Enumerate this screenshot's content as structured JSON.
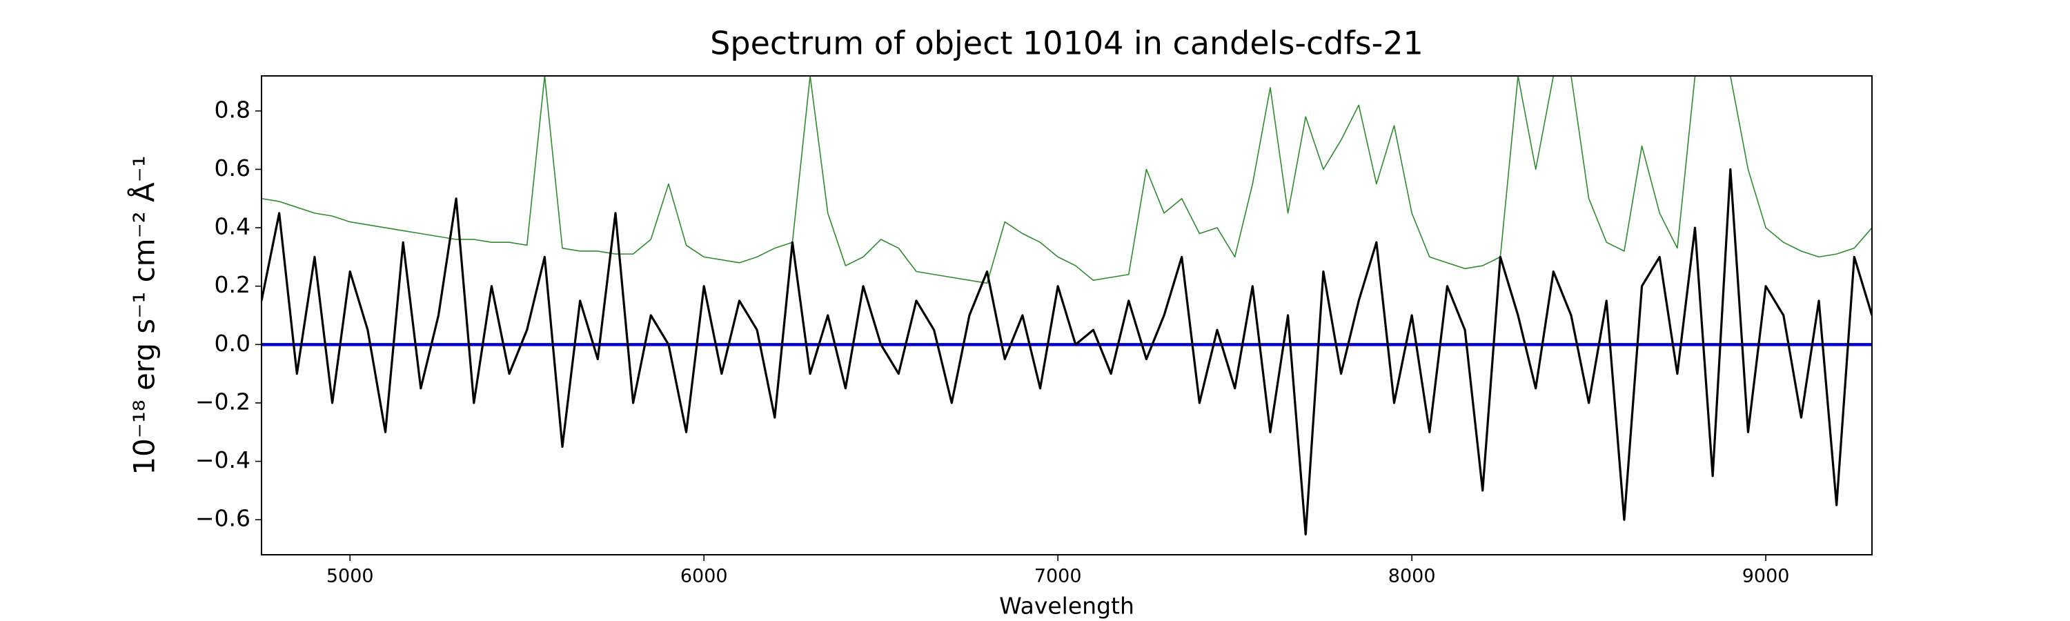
{
  "chart_data": {
    "type": "line",
    "title": "Spectrum of object 10104 in candels-cdfs-21",
    "xlabel": "Wavelength",
    "ylabel": "10⁻¹⁸ erg s⁻¹ cm⁻² Å⁻¹",
    "x": [
      4750,
      4800,
      4850,
      4900,
      4950,
      5000,
      5050,
      5100,
      5150,
      5200,
      5250,
      5300,
      5350,
      5400,
      5450,
      5500,
      5550,
      5600,
      5650,
      5700,
      5750,
      5800,
      5850,
      5900,
      5950,
      6000,
      6050,
      6100,
      6150,
      6200,
      6250,
      6300,
      6350,
      6400,
      6450,
      6500,
      6550,
      6600,
      6650,
      6700,
      6750,
      6800,
      6850,
      6900,
      6950,
      7000,
      7050,
      7100,
      7150,
      7200,
      7250,
      7300,
      7350,
      7400,
      7450,
      7500,
      7550,
      7600,
      7650,
      7700,
      7750,
      7800,
      7850,
      7900,
      7950,
      8000,
      8050,
      8100,
      8150,
      8200,
      8250,
      8300,
      8350,
      8400,
      8450,
      8500,
      8550,
      8600,
      8650,
      8700,
      8750,
      8800,
      8850,
      8900,
      8950,
      9000,
      9050,
      9100,
      9150,
      9200,
      9250,
      9300
    ],
    "series": [
      {
        "color": "#2e8b2e",
        "width": 1.6,
        "values": [
          0.5,
          0.49,
          0.47,
          0.45,
          0.44,
          0.42,
          0.41,
          0.4,
          0.39,
          0.38,
          0.37,
          0.36,
          0.36,
          0.35,
          0.35,
          0.34,
          0.92,
          0.33,
          0.32,
          0.32,
          0.31,
          0.31,
          0.36,
          0.55,
          0.34,
          0.3,
          0.29,
          0.28,
          0.3,
          0.33,
          0.35,
          0.92,
          0.45,
          0.27,
          0.3,
          0.36,
          0.33,
          0.25,
          0.24,
          0.23,
          0.22,
          0.21,
          0.42,
          0.38,
          0.35,
          0.3,
          0.27,
          0.22,
          0.23,
          0.24,
          0.6,
          0.45,
          0.5,
          0.38,
          0.4,
          0.3,
          0.55,
          0.88,
          0.45,
          0.78,
          0.6,
          0.7,
          0.82,
          0.55,
          0.75,
          0.45,
          0.3,
          0.28,
          0.26,
          0.27,
          0.3,
          0.92,
          0.6,
          0.92,
          0.92,
          0.5,
          0.35,
          0.32,
          0.68,
          0.45,
          0.33,
          0.92,
          0.92,
          0.92,
          0.6,
          0.4,
          0.35,
          0.32,
          0.3,
          0.31,
          0.33,
          0.4
        ]
      },
      {
        "color": "#0000cc",
        "width": 4.5,
        "values": [
          0,
          0,
          0,
          0,
          0,
          0,
          0,
          0,
          0,
          0,
          0,
          0,
          0,
          0,
          0,
          0,
          0,
          0,
          0,
          0,
          0,
          0,
          0,
          0,
          0,
          0,
          0,
          0,
          0,
          0,
          0,
          0,
          0,
          0,
          0,
          0,
          0,
          0,
          0,
          0,
          0,
          0,
          0,
          0,
          0,
          0,
          0,
          0,
          0,
          0,
          0,
          0,
          0,
          0,
          0,
          0,
          0,
          0,
          0,
          0,
          0,
          0,
          0,
          0,
          0,
          0,
          0,
          0,
          0,
          0,
          0,
          0,
          0,
          0,
          0,
          0,
          0,
          0,
          0,
          0,
          0,
          0,
          0,
          0,
          0,
          0,
          0,
          0,
          0,
          0,
          0,
          0
        ]
      },
      {
        "color": "#000000",
        "width": 3.2,
        "values": [
          0.15,
          0.45,
          -0.1,
          0.3,
          -0.2,
          0.25,
          0.05,
          -0.3,
          0.35,
          -0.15,
          0.1,
          0.5,
          -0.2,
          0.2,
          -0.1,
          0.05,
          0.3,
          -0.35,
          0.15,
          -0.05,
          0.45,
          -0.2,
          0.1,
          0.0,
          -0.3,
          0.2,
          -0.1,
          0.15,
          0.05,
          -0.25,
          0.35,
          -0.1,
          0.1,
          -0.15,
          0.2,
          0.0,
          -0.1,
          0.15,
          0.05,
          -0.2,
          0.1,
          0.25,
          -0.05,
          0.1,
          -0.15,
          0.2,
          0.0,
          0.05,
          -0.1,
          0.15,
          -0.05,
          0.1,
          0.3,
          -0.2,
          0.05,
          -0.15,
          0.2,
          -0.3,
          0.1,
          -0.65,
          0.25,
          -0.1,
          0.15,
          0.35,
          -0.2,
          0.1,
          -0.3,
          0.2,
          0.05,
          -0.5,
          0.3,
          0.1,
          -0.15,
          0.25,
          0.1,
          -0.2,
          0.15,
          -0.6,
          0.2,
          0.3,
          -0.1,
          0.4,
          -0.45,
          0.6,
          -0.3,
          0.2,
          0.1,
          -0.25,
          0.15,
          -0.55,
          0.3,
          0.1
        ]
      }
    ],
    "xlim": [
      4750,
      9300
    ],
    "xticks": [
      5000,
      6000,
      7000,
      8000,
      9000
    ],
    "ylim": [
      -0.72,
      0.92
    ],
    "yticks": [
      {
        "value": -0.6,
        "label": "−0.6"
      },
      {
        "value": -0.4,
        "label": "−0.4"
      },
      {
        "value": -0.2,
        "label": "−0.2"
      },
      {
        "value": 0.0,
        "label": "0.0"
      },
      {
        "value": 0.2,
        "label": "0.2"
      },
      {
        "value": 0.4,
        "label": "0.4"
      },
      {
        "value": 0.6,
        "label": "0.6"
      },
      {
        "value": 0.8,
        "label": "0.8"
      }
    ],
    "grid": false
  }
}
